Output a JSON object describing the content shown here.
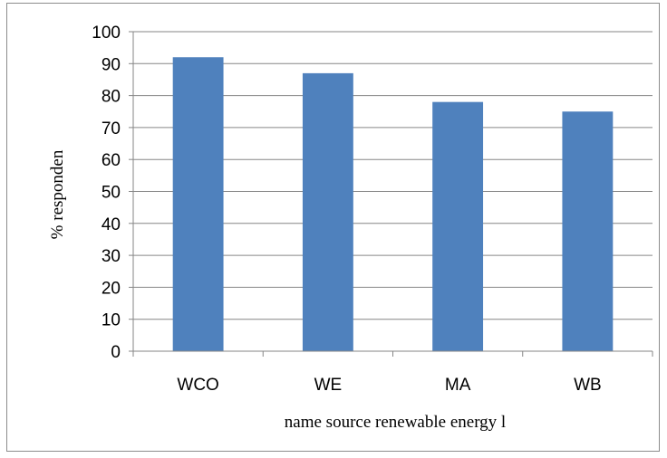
{
  "chart_data": {
    "type": "bar",
    "categories": [
      "WCO",
      "WE",
      "MA",
      "WB"
    ],
    "values": [
      92,
      87,
      78,
      75
    ],
    "title": "",
    "xlabel": "name source renewable energy l",
    "ylabel": "% responden",
    "ylim": [
      0,
      100
    ],
    "yticks": [
      0,
      10,
      20,
      30,
      40,
      50,
      60,
      70,
      80,
      90,
      100
    ],
    "grid": true,
    "legend": "none",
    "bar_color": "#4f81bd",
    "grid_color": "#868686"
  }
}
